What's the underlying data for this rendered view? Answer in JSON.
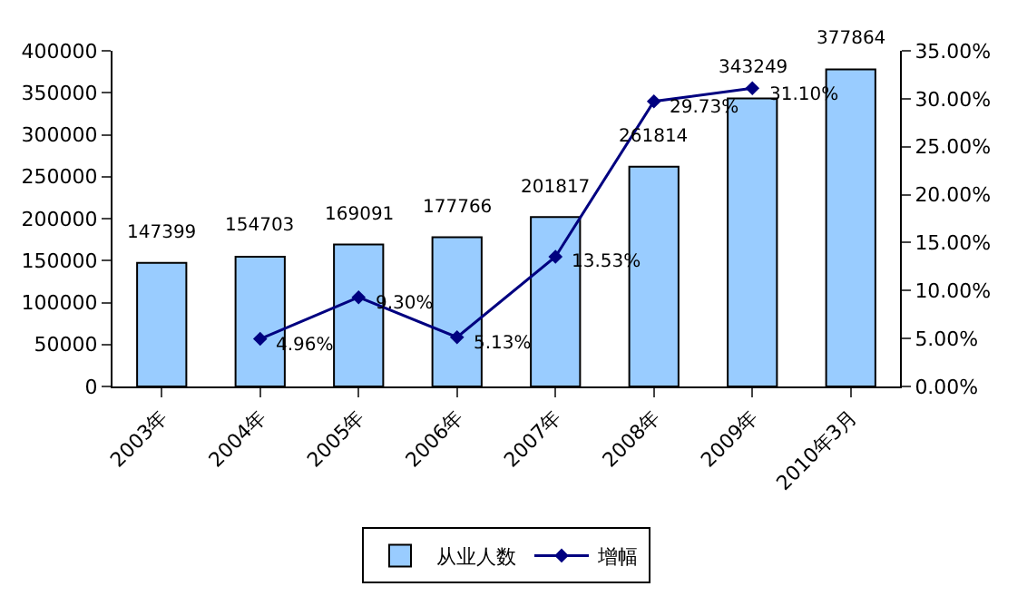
{
  "chart_data": {
    "type": "bar",
    "categories": [
      "2003年",
      "2004年",
      "2005年",
      "2006年",
      "2007年",
      "2008年",
      "2009年",
      "2010年3月"
    ],
    "series": [
      {
        "name": "从业人数",
        "color": "#99ccff",
        "values": [
          147399,
          154703,
          169091,
          177766,
          201817,
          261814,
          343249,
          377864
        ],
        "value_labels": [
          "147399",
          "154703",
          "169091",
          "177766",
          "201817",
          "261814",
          "343249",
          "377864"
        ]
      },
      {
        "name": "增幅",
        "type": "line",
        "axis": "y2",
        "color": "#000080",
        "marker": "diamond",
        "values": [
          null,
          4.96,
          9.3,
          5.13,
          13.53,
          29.73,
          31.1,
          null
        ],
        "value_labels": [
          null,
          "4.96%",
          "9.30%",
          "5.13%",
          "13.53%",
          "29.73%",
          "31.10%",
          null
        ]
      }
    ],
    "ylim": [
      0,
      400000
    ],
    "yticks": [
      0,
      50000,
      100000,
      150000,
      200000,
      250000,
      300000,
      350000,
      400000
    ],
    "y2lim": [
      0,
      35
    ],
    "y2ticks": [
      {
        "value": 0,
        "label": "0.00%"
      },
      {
        "value": 5,
        "label": "5.00%"
      },
      {
        "value": 10,
        "label": "10.00%"
      },
      {
        "value": 15,
        "label": "15.00%"
      },
      {
        "value": 20,
        "label": "20.00%"
      },
      {
        "value": 25,
        "label": "25.00%"
      },
      {
        "value": 30,
        "label": "30.00%"
      },
      {
        "value": 35,
        "label": "35.00%"
      }
    ],
    "grid": false,
    "legend": "bottom"
  }
}
